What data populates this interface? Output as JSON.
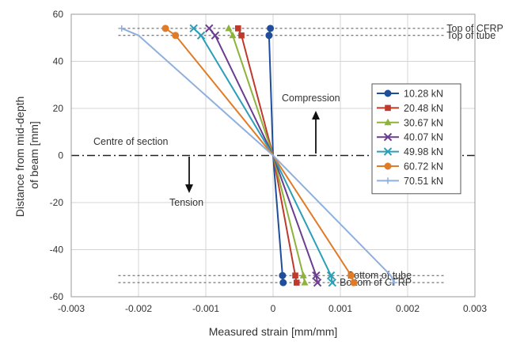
{
  "chart_data": {
    "type": "line",
    "title": "",
    "xlabel": "Measured strain [mm/mm]",
    "ylabel": "Distance from mid-depth of beam [mm]",
    "xlim": [
      -0.003,
      0.003
    ],
    "ylim": [
      -60,
      60
    ],
    "xticks": [
      "-0.003",
      "-0.002",
      "-0.001",
      "0",
      "0.001",
      "0.002",
      "0.003"
    ],
    "yticks": [
      "-60",
      "-40",
      "-20",
      "0",
      "20",
      "40",
      "60"
    ],
    "grid": true,
    "legend_position": "right",
    "series": [
      {
        "name": "10.28 kN",
        "color": "#1f4e9a",
        "marker": "circle",
        "points": [
          [
            -4e-05,
            54
          ],
          [
            -6e-05,
            51
          ],
          [
            0,
            0
          ],
          [
            0.00014,
            -51
          ],
          [
            0.00015,
            -54
          ]
        ]
      },
      {
        "name": "20.48 kN",
        "color": "#c0392b",
        "marker": "square",
        "points": [
          [
            -0.00052,
            54
          ],
          [
            -0.00047,
            51
          ],
          [
            0,
            0
          ],
          [
            0.00033,
            -51
          ],
          [
            0.00035,
            -54
          ]
        ]
      },
      {
        "name": "30.67 kN",
        "color": "#8db33a",
        "marker": "triangle",
        "points": [
          [
            -0.00066,
            54
          ],
          [
            -0.0006,
            51
          ],
          [
            0,
            0
          ],
          [
            0.00045,
            -51
          ],
          [
            0.00047,
            -54
          ]
        ]
      },
      {
        "name": "40.07 kN",
        "color": "#6a3d8f",
        "marker": "x",
        "points": [
          [
            -0.00095,
            54
          ],
          [
            -0.00086,
            51
          ],
          [
            0,
            0
          ],
          [
            0.00064,
            -51
          ],
          [
            0.00066,
            -54
          ]
        ]
      },
      {
        "name": "49.98 kN",
        "color": "#2a9fb8",
        "marker": "x",
        "points": [
          [
            -0.00118,
            54
          ],
          [
            -0.00107,
            51
          ],
          [
            0,
            0
          ],
          [
            0.00086,
            -51
          ],
          [
            0.00088,
            -54
          ]
        ]
      },
      {
        "name": "60.72 kN",
        "color": "#e07b27",
        "marker": "circle",
        "points": [
          [
            -0.0016,
            54
          ],
          [
            -0.00145,
            51
          ],
          [
            0,
            0
          ],
          [
            0.00116,
            -51
          ],
          [
            0.0012,
            -54
          ]
        ]
      },
      {
        "name": "70.51 kN",
        "color": "#8fb0dc",
        "marker": "plus",
        "points": [
          [
            -0.00225,
            54
          ],
          [
            -0.002,
            51
          ],
          [
            0,
            0
          ],
          [
            0.00175,
            -51
          ],
          [
            0.0018,
            -54
          ]
        ]
      }
    ],
    "reference_lines": [
      {
        "label": "Top of CFRP",
        "y": 54
      },
      {
        "label": "Top of tube",
        "y": 51
      },
      {
        "label": "Bottom of tube",
        "y": -51
      },
      {
        "label": "Bottom of CFRP",
        "y": -54
      }
    ],
    "annotations": {
      "centre": "Centre of section",
      "compression": "Compression",
      "tension": "Tension"
    }
  }
}
